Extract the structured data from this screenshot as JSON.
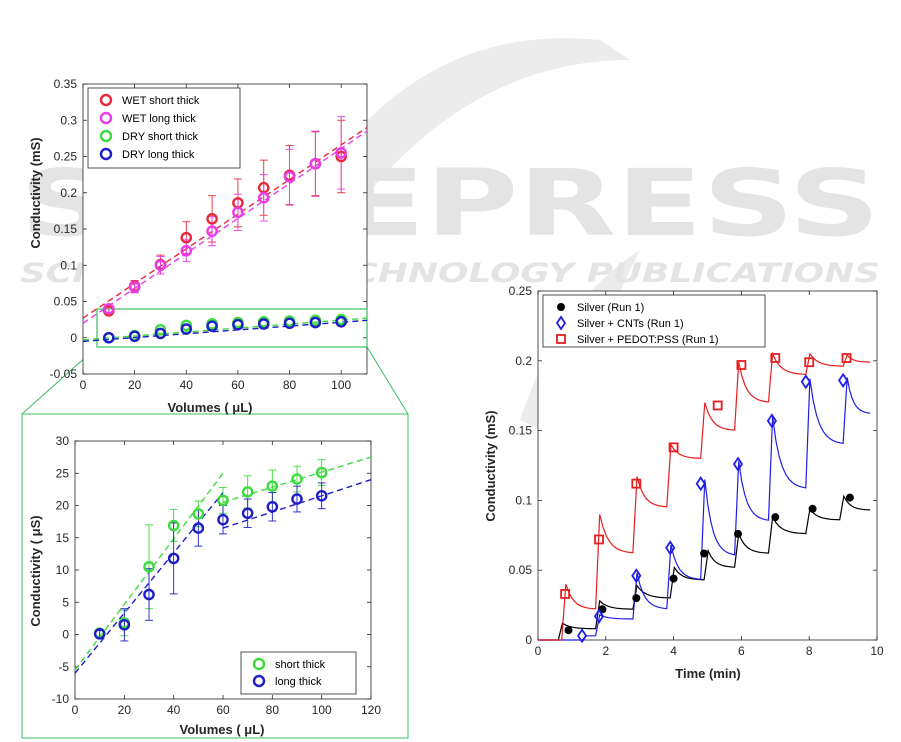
{
  "watermark": {
    "big": "SCITEPRESS",
    "small": "SCIENCE AND TECHNOLOGY PUBLICATIONS"
  },
  "chart_data": [
    {
      "id": "p1",
      "type": "scatter",
      "xlabel": "Volumes ( μL)",
      "ylabel": "Conductivity (mS)",
      "xlim": [
        0,
        110
      ],
      "ylim": [
        -0.05,
        0.35
      ],
      "xticks": [
        0,
        20,
        40,
        60,
        80,
        100
      ],
      "yticks": [
        -0.05,
        0,
        0.05,
        0.1,
        0.15,
        0.2,
        0.25,
        0.3,
        0.35
      ],
      "ytick_labels": [
        "-0.05",
        "0",
        "0.05",
        "0.1",
        "0.15",
        "0.2",
        "0.25",
        "0.3",
        "0.35"
      ],
      "grid": false,
      "legend_position": "top-left",
      "series": [
        {
          "name": "WET short thick",
          "color": "#e8283c",
          "x": [
            10,
            20,
            30,
            40,
            50,
            60,
            70,
            80,
            90,
            100
          ],
          "y": [
            0.037,
            0.071,
            0.101,
            0.138,
            0.164,
            0.186,
            0.207,
            0.224,
            0.24,
            0.25
          ],
          "err": [
            0.005,
            0.008,
            0.013,
            0.022,
            0.032,
            0.033,
            0.038,
            0.041,
            0.044,
            0.05
          ],
          "fit": [
            [
              0,
              0.027
            ],
            [
              110,
              0.29
            ]
          ]
        },
        {
          "name": "WET long thick",
          "color": "#e83ce8",
          "x": [
            10,
            20,
            30,
            40,
            50,
            60,
            70,
            80,
            90,
            100
          ],
          "y": [
            0.04,
            0.07,
            0.1,
            0.12,
            0.147,
            0.173,
            0.193,
            0.222,
            0.24,
            0.255
          ],
          "err": [
            0.005,
            0.008,
            0.012,
            0.015,
            0.02,
            0.025,
            0.032,
            0.038,
            0.045,
            0.05
          ],
          "fit": [
            [
              0,
              0.02
            ],
            [
              110,
              0.285
            ]
          ]
        },
        {
          "name": "DRY short thick",
          "color": "#3cdc3c",
          "x": [
            10,
            20,
            30,
            40,
            50,
            60,
            70,
            80,
            90,
            100
          ],
          "y": [
            0.0,
            0.003,
            0.011,
            0.017,
            0.019,
            0.021,
            0.022,
            0.023,
            0.024,
            0.025
          ],
          "fit": [
            [
              0,
              -0.003
            ],
            [
              110,
              0.027
            ]
          ]
        },
        {
          "name": "DRY long thick",
          "color": "#1e1ec8",
          "x": [
            10,
            20,
            30,
            40,
            50,
            60,
            70,
            80,
            90,
            100
          ],
          "y": [
            0.0,
            0.002,
            0.006,
            0.012,
            0.016,
            0.018,
            0.019,
            0.02,
            0.021,
            0.022
          ],
          "fit": [
            [
              0,
              -0.005
            ],
            [
              110,
              0.024
            ]
          ]
        }
      ]
    },
    {
      "id": "p2",
      "type": "scatter",
      "xlabel": "Volumes ( μL)",
      "ylabel": "Conductivity ( μS)",
      "xlim": [
        0,
        120
      ],
      "ylim": [
        -10,
        30
      ],
      "xticks": [
        0,
        20,
        40,
        60,
        80,
        100,
        120
      ],
      "yticks": [
        -10,
        -5,
        0,
        5,
        10,
        15,
        20,
        25,
        30
      ],
      "ytick_labels": [
        "-10",
        "-5",
        "0",
        "5",
        "10",
        "15",
        "20",
        "25",
        "30"
      ],
      "grid": false,
      "legend_position": "bottom-right",
      "series": [
        {
          "name": "short thick",
          "color": "#3cdc3c",
          "x": [
            10,
            20,
            30,
            40,
            50,
            60,
            70,
            80,
            90,
            100
          ],
          "y": [
            0.2,
            1.8,
            10.5,
            16.9,
            18.7,
            20.8,
            22.1,
            23.0,
            24.1,
            25.1
          ],
          "err": [
            0.5,
            2.0,
            6.5,
            2.5,
            2.0,
            2.0,
            2.5,
            2.5,
            2.0,
            2.0
          ],
          "fit": [
            [
              [
                0,
                -5.5
              ],
              [
                60,
                25
              ]
            ],
            [
              [
                60,
                20.5
              ],
              [
                120,
                27.5
              ]
            ]
          ]
        },
        {
          "name": "long thick",
          "color": "#1e1ec8",
          "x": [
            10,
            20,
            30,
            40,
            50,
            60,
            70,
            80,
            90,
            100
          ],
          "y": [
            0.1,
            1.5,
            6.2,
            11.8,
            16.5,
            17.8,
            18.8,
            19.8,
            21.0,
            21.5
          ],
          "err": [
            0.5,
            2.5,
            4.0,
            5.5,
            2.8,
            2.2,
            2.2,
            2.2,
            2.0,
            2.0
          ],
          "fit": [
            [
              [
                0,
                -6
              ],
              [
                60,
                22
              ]
            ],
            [
              [
                60,
                16.5
              ],
              [
                120,
                24
              ]
            ]
          ]
        }
      ]
    },
    {
      "id": "p3",
      "type": "line",
      "xlabel": "Time (min)",
      "ylabel": "Conductivity (mS)",
      "xlim": [
        0,
        10
      ],
      "ylim": [
        0,
        0.25
      ],
      "xticks": [
        0,
        2,
        4,
        6,
        8,
        10
      ],
      "yticks": [
        0,
        0.05,
        0.1,
        0.15,
        0.2,
        0.25
      ],
      "ytick_labels": [
        "0",
        "0.05",
        "0.1",
        "0.15",
        "0.2",
        "0.25"
      ],
      "grid": false,
      "legend_position": "top-left",
      "series": [
        {
          "name": "Silver (Run 1)",
          "color": "#000000",
          "marker": "circle",
          "steps": [
            [
              0.6,
              0.008
            ],
            [
              1.7,
              0.022
            ],
            [
              2.8,
              0.03
            ],
            [
              3.9,
              0.043
            ],
            [
              4.9,
              0.052
            ],
            [
              5.8,
              0.062
            ],
            [
              6.8,
              0.076
            ],
            [
              7.9,
              0.086
            ],
            [
              8.9,
              0.093
            ]
          ],
          "peaks": [
            0.012,
            0.028,
            0.039,
            0.052,
            0.064,
            0.076,
            0.088,
            0.094,
            0.103
          ],
          "markers": [
            [
              0.9,
              0.007
            ],
            [
              1.9,
              0.022
            ],
            [
              2.9,
              0.03
            ],
            [
              4.0,
              0.044
            ],
            [
              4.9,
              0.062
            ],
            [
              5.9,
              0.076
            ],
            [
              7.0,
              0.088
            ],
            [
              8.1,
              0.094
            ],
            [
              9.2,
              0.102
            ]
          ]
        },
        {
          "name": "Silver + CNTs (Run 1)",
          "color": "#1e1ee6",
          "marker": "diamond",
          "steps": [
            [
              1.3,
              0.003
            ],
            [
              1.7,
              0.015
            ],
            [
              2.8,
              0.022
            ],
            [
              3.8,
              0.043
            ],
            [
              4.8,
              0.06
            ],
            [
              5.8,
              0.085
            ],
            [
              6.8,
              0.108
            ],
            [
              7.9,
              0.14
            ],
            [
              9.0,
              0.162
            ]
          ],
          "peaks": [
            0.003,
            0.018,
            0.048,
            0.068,
            0.115,
            0.128,
            0.16,
            0.187,
            0.188
          ],
          "markers": [
            [
              1.3,
              0.003
            ],
            [
              1.8,
              0.017
            ],
            [
              2.9,
              0.046
            ],
            [
              3.9,
              0.066
            ],
            [
              4.8,
              0.112
            ],
            [
              5.9,
              0.126
            ],
            [
              6.9,
              0.157
            ],
            [
              7.9,
              0.185
            ],
            [
              9.0,
              0.186
            ]
          ]
        },
        {
          "name": "Silver + PEDOT:PSS (Run 1)",
          "color": "#e61e1e",
          "marker": "square",
          "steps": [
            [
              0.7,
              0.022
            ],
            [
              1.7,
              0.062
            ],
            [
              2.8,
              0.095
            ],
            [
              3.8,
              0.13
            ],
            [
              4.8,
              0.15
            ],
            [
              5.8,
              0.17
            ],
            [
              6.8,
              0.19
            ],
            [
              7.9,
              0.196
            ],
            [
              9.0,
              0.199
            ]
          ],
          "peaks": [
            0.04,
            0.09,
            0.117,
            0.14,
            0.17,
            0.199,
            0.205,
            0.205,
            0.204
          ],
          "markers": [
            [
              0.8,
              0.033
            ],
            [
              1.8,
              0.072
            ],
            [
              2.9,
              0.112
            ],
            [
              4.0,
              0.138
            ],
            [
              5.3,
              0.168
            ],
            [
              6.0,
              0.197
            ],
            [
              7.0,
              0.202
            ],
            [
              8.0,
              0.199
            ],
            [
              9.1,
              0.202
            ]
          ]
        }
      ]
    }
  ]
}
